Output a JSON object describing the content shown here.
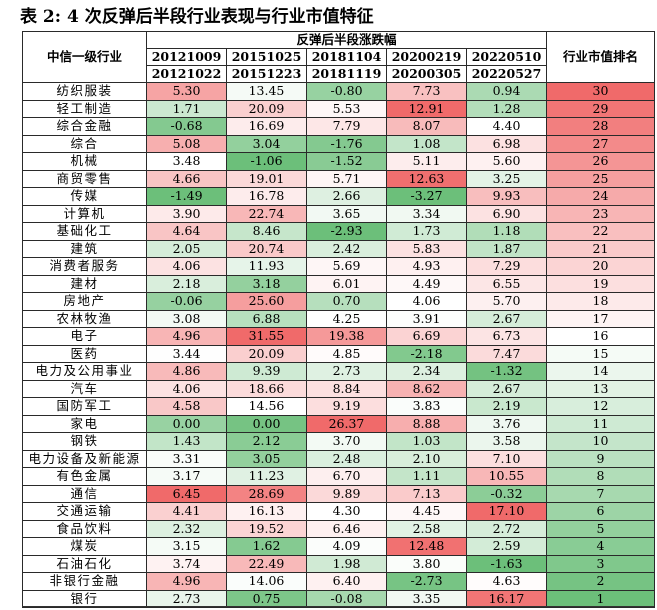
{
  "title": "表 2: 4 次反弹后半段行业表现与行业市值特征",
  "header": {
    "industry": "中信一级行业",
    "group": "反弹后半段涨跌幅",
    "rank": "行业市值排名",
    "periods": [
      {
        "start": "20121009",
        "end": "20121022"
      },
      {
        "start": "20151025",
        "end": "20151223"
      },
      {
        "start": "20181104",
        "end": "20181119"
      },
      {
        "start": "20200219",
        "end": "20200305"
      },
      {
        "start": "20220510",
        "end": "20220527"
      }
    ]
  },
  "rows": [
    {
      "industry": "纺织服装",
      "values": [
        "5.30",
        "13.45",
        "-0.80",
        "7.73",
        "0.94"
      ],
      "rank": "30"
    },
    {
      "industry": "轻工制造",
      "values": [
        "1.71",
        "20.09",
        "5.53",
        "12.91",
        "1.28"
      ],
      "rank": "29"
    },
    {
      "industry": "综合金融",
      "values": [
        "-0.68",
        "16.69",
        "7.79",
        "8.07",
        "4.40"
      ],
      "rank": "28"
    },
    {
      "industry": "综合",
      "values": [
        "5.08",
        "3.04",
        "-1.76",
        "1.08",
        "6.98"
      ],
      "rank": "27"
    },
    {
      "industry": "机械",
      "values": [
        "3.48",
        "-1.06",
        "-1.52",
        "5.11",
        "5.60"
      ],
      "rank": "26"
    },
    {
      "industry": "商贸零售",
      "values": [
        "4.66",
        "19.01",
        "5.71",
        "12.63",
        "3.25"
      ],
      "rank": "25"
    },
    {
      "industry": "传媒",
      "values": [
        "-1.49",
        "16.78",
        "2.66",
        "-3.27",
        "9.93"
      ],
      "rank": "24"
    },
    {
      "industry": "计算机",
      "values": [
        "3.90",
        "22.74",
        "3.65",
        "3.34",
        "6.90"
      ],
      "rank": "23"
    },
    {
      "industry": "基础化工",
      "values": [
        "4.64",
        "8.46",
        "-2.93",
        "1.73",
        "1.18"
      ],
      "rank": "22"
    },
    {
      "industry": "建筑",
      "values": [
        "2.05",
        "20.74",
        "2.42",
        "5.83",
        "1.87"
      ],
      "rank": "21"
    },
    {
      "industry": "消费者服务",
      "values": [
        "4.06",
        "11.93",
        "5.69",
        "4.93",
        "7.29"
      ],
      "rank": "20"
    },
    {
      "industry": "建材",
      "values": [
        "2.18",
        "3.18",
        "6.01",
        "4.49",
        "6.55"
      ],
      "rank": "19"
    },
    {
      "industry": "房地产",
      "values": [
        "-0.06",
        "25.60",
        "0.70",
        "4.06",
        "5.70"
      ],
      "rank": "18"
    },
    {
      "industry": "农林牧渔",
      "values": [
        "3.08",
        "6.88",
        "4.25",
        "3.91",
        "2.67"
      ],
      "rank": "17"
    },
    {
      "industry": "电子",
      "values": [
        "4.96",
        "31.55",
        "19.38",
        "6.69",
        "6.73"
      ],
      "rank": "16"
    },
    {
      "industry": "医药",
      "values": [
        "3.44",
        "20.09",
        "4.85",
        "-2.18",
        "7.47"
      ],
      "rank": "15"
    },
    {
      "industry": "电力及公用事业",
      "values": [
        "4.86",
        "9.39",
        "2.73",
        "2.34",
        "-1.32"
      ],
      "rank": "14"
    },
    {
      "industry": "汽车",
      "values": [
        "4.06",
        "18.66",
        "8.84",
        "8.62",
        "2.67"
      ],
      "rank": "13"
    },
    {
      "industry": "国防军工",
      "values": [
        "4.58",
        "14.56",
        "9.19",
        "3.83",
        "2.19"
      ],
      "rank": "12"
    },
    {
      "industry": "家电",
      "values": [
        "0.00",
        "0.00",
        "26.37",
        "8.88",
        "3.76"
      ],
      "rank": "11"
    },
    {
      "industry": "钢铁",
      "values": [
        "1.43",
        "2.12",
        "3.70",
        "1.03",
        "3.58"
      ],
      "rank": "10"
    },
    {
      "industry": "电力设备及新能源",
      "values": [
        "3.31",
        "3.05",
        "2.48",
        "2.10",
        "7.10"
      ],
      "rank": "9"
    },
    {
      "industry": "有色金属",
      "values": [
        "3.17",
        "11.23",
        "6.70",
        "1.11",
        "10.55"
      ],
      "rank": "8"
    },
    {
      "industry": "通信",
      "values": [
        "6.45",
        "28.69",
        "9.89",
        "7.13",
        "-0.32"
      ],
      "rank": "7"
    },
    {
      "industry": "交通运输",
      "values": [
        "4.41",
        "16.13",
        "4.30",
        "4.45",
        "17.10"
      ],
      "rank": "6"
    },
    {
      "industry": "食品饮料",
      "values": [
        "2.32",
        "19.52",
        "6.46",
        "2.58",
        "2.72"
      ],
      "rank": "5"
    },
    {
      "industry": "煤炭",
      "values": [
        "3.15",
        "1.62",
        "4.09",
        "12.48",
        "2.59"
      ],
      "rank": "4"
    },
    {
      "industry": "石油石化",
      "values": [
        "3.74",
        "22.49",
        "1.98",
        "3.80",
        "-1.63"
      ],
      "rank": "3"
    },
    {
      "industry": "非银行金融",
      "values": [
        "4.96",
        "14.06",
        "6.40",
        "-2.73",
        "4.63"
      ],
      "rank": "2"
    },
    {
      "industry": "银行",
      "values": [
        "2.73",
        "0.75",
        "-0.08",
        "3.35",
        "16.17"
      ],
      "rank": "1"
    }
  ],
  "colors": {
    "red_strong": "#f06a6a",
    "green_strong": "#6cbf7a",
    "white": "#ffffff",
    "border": "#2a2a2a"
  }
}
